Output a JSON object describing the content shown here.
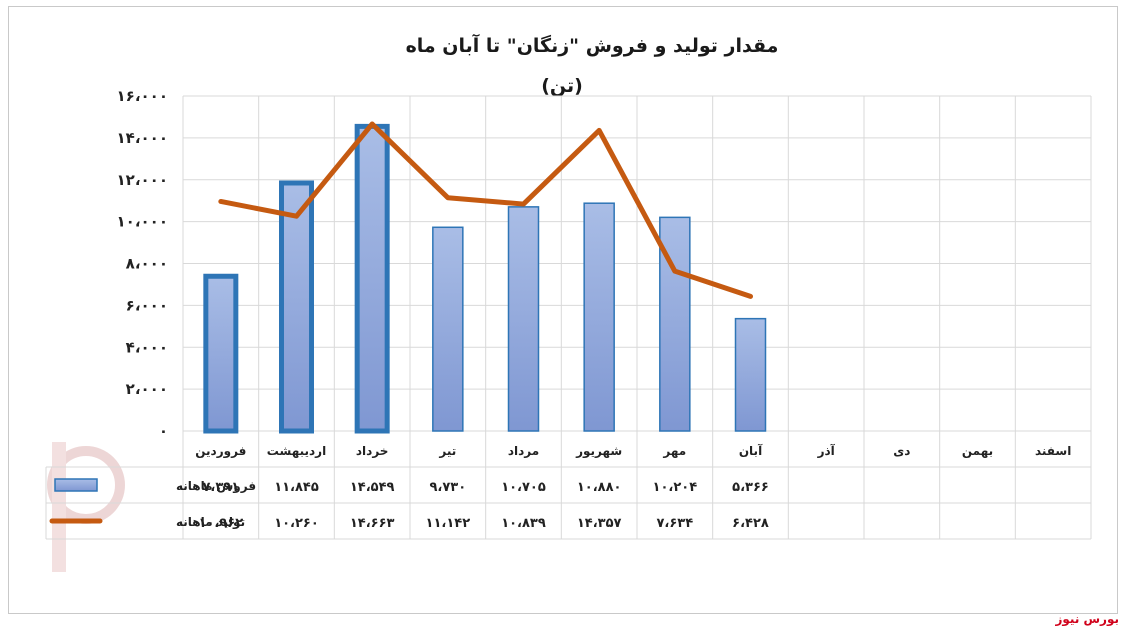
{
  "chart_data": {
    "type": "bar",
    "title": "مقدار تولید و فروش \"زنگان\" تا آبان ماه",
    "subtitle": "(تن)",
    "categories": [
      "فروردین",
      "اردیبهشت",
      "خرداد",
      "تیر",
      "مرداد",
      "شهریور",
      "مهر",
      "آبان",
      "آذر",
      "دی",
      "بهمن",
      "اسفند"
    ],
    "series": [
      {
        "name": "فروش ماهانه",
        "kind": "bar",
        "color": "#8ea9db",
        "values": [
          7391,
          11845,
          14549,
          9730,
          10705,
          10880,
          10204,
          5366,
          null,
          null,
          null,
          null
        ],
        "labels": [
          "۷،۳۹۱",
          "۱۱،۸۴۵",
          "۱۴،۵۴۹",
          "۹،۷۳۰",
          "۱۰،۷۰۵",
          "۱۰،۸۸۰",
          "۱۰،۲۰۴",
          "۵،۳۶۶",
          "",
          "",
          "",
          ""
        ]
      },
      {
        "name": "تولید ماهانه",
        "kind": "line",
        "color": "#c55a11",
        "values": [
          10962,
          10260,
          14663,
          11142,
          10839,
          14357,
          7634,
          6428,
          null,
          null,
          null,
          null
        ],
        "labels": [
          "۱۰،۹۶۲",
          "۱۰،۲۶۰",
          "۱۴،۶۶۳",
          "۱۱،۱۴۲",
          "۱۰،۸۳۹",
          "۱۴،۳۵۷",
          "۷،۶۳۴",
          "۶،۴۲۸",
          "",
          "",
          "",
          ""
        ]
      }
    ],
    "ylim": [
      0,
      16000
    ],
    "yticks": [
      {
        "value": 0,
        "label": "۰"
      },
      {
        "value": 2000,
        "label": "۲،۰۰۰"
      },
      {
        "value": 4000,
        "label": "۴،۰۰۰"
      },
      {
        "value": 6000,
        "label": "۶،۰۰۰"
      },
      {
        "value": 8000,
        "label": "۸،۰۰۰"
      },
      {
        "value": 10000,
        "label": "۱۰،۰۰۰"
      },
      {
        "value": 12000,
        "label": "۱۲،۰۰۰"
      },
      {
        "value": 14000,
        "label": "۱۴،۰۰۰"
      },
      {
        "value": 16000,
        "label": "۱۶،۰۰۰"
      }
    ],
    "grid": true,
    "legend": "data-table-left"
  },
  "source": "بورس نیوز"
}
